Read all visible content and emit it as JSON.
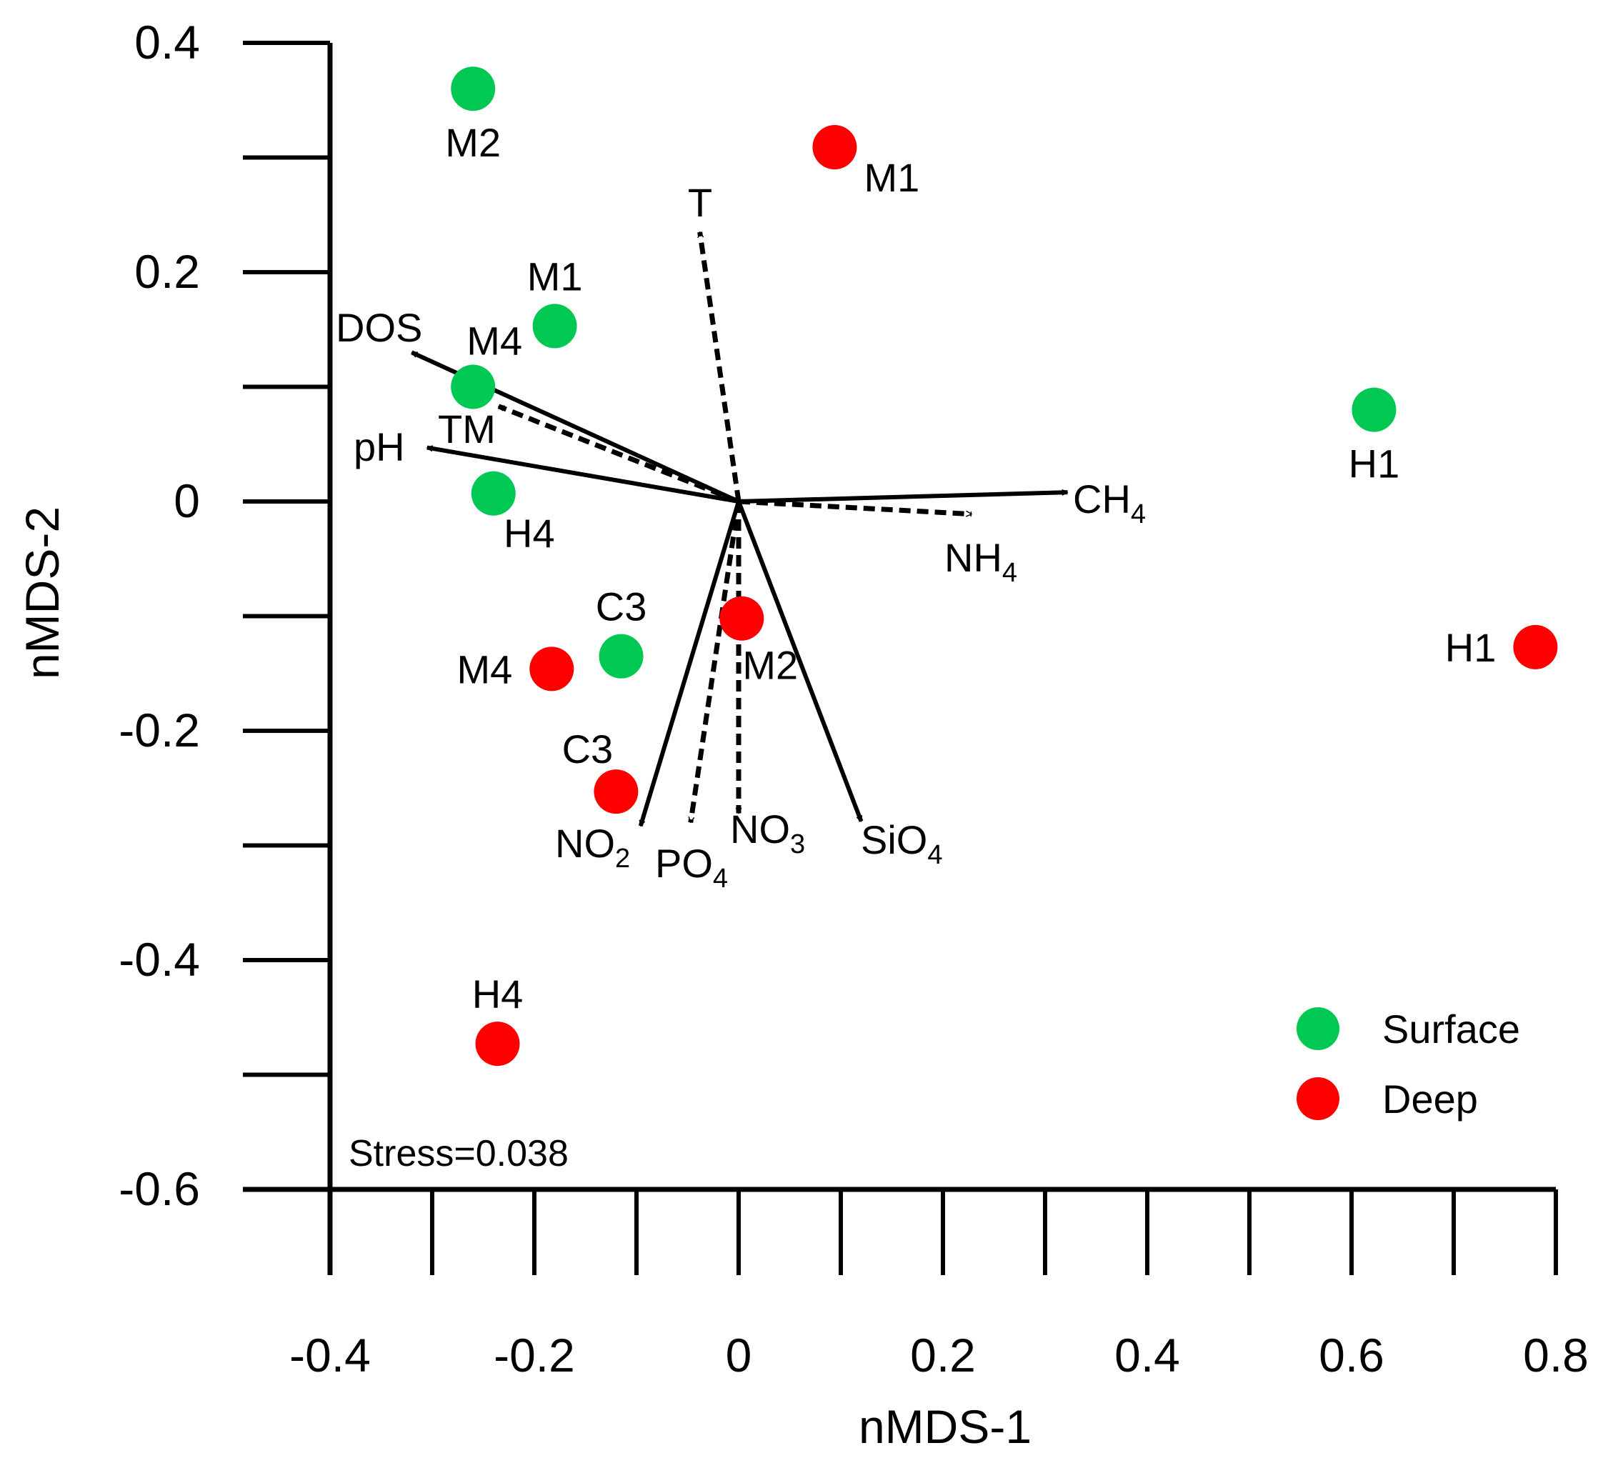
{
  "chart_data": {
    "type": "scatter",
    "title": "",
    "xlabel": "nMDS-1",
    "ylabel": "nMDS-2",
    "xlim": [
      -0.4,
      0.8
    ],
    "ylim": [
      -0.6,
      0.4
    ],
    "x_ticks": [
      -0.4,
      -0.3,
      -0.2,
      -0.1,
      0,
      0.1,
      0.2,
      0.3,
      0.4,
      0.5,
      0.6,
      0.7,
      0.8
    ],
    "x_tick_labels": [
      {
        "value": -0.4,
        "label": "-0.4"
      },
      {
        "value": -0.2,
        "label": "-0.2"
      },
      {
        "value": 0,
        "label": "0"
      },
      {
        "value": 0.2,
        "label": "0.2"
      },
      {
        "value": 0.4,
        "label": "0.4"
      },
      {
        "value": 0.6,
        "label": "0.6"
      },
      {
        "value": 0.8,
        "label": "0.8"
      }
    ],
    "y_ticks": [
      0.4,
      0.3,
      0.2,
      0.1,
      0,
      -0.1,
      -0.2,
      -0.3,
      -0.4,
      -0.5,
      -0.6
    ],
    "y_tick_labels": [
      {
        "value": 0.4,
        "label": "0.4"
      },
      {
        "value": 0.2,
        "label": "0.2"
      },
      {
        "value": 0,
        "label": "0"
      },
      {
        "value": -0.2,
        "label": "-0.2"
      },
      {
        "value": -0.4,
        "label": "-0.4"
      },
      {
        "value": -0.6,
        "label": "-0.6"
      }
    ],
    "series": [
      {
        "name": "Surface",
        "color": "#00c853",
        "points": [
          {
            "label": "M2",
            "x": -0.26,
            "y": 0.36,
            "label_pos": "below"
          },
          {
            "label": "M1",
            "x": -0.18,
            "y": 0.153,
            "label_pos": "above"
          },
          {
            "label": "M4",
            "x": -0.26,
            "y": 0.1,
            "label_pos": "above-right"
          },
          {
            "label": "H4",
            "x": -0.24,
            "y": 0.007,
            "label_pos": "below-right"
          },
          {
            "label": "C3",
            "x": -0.115,
            "y": -0.135,
            "label_pos": "above"
          },
          {
            "label": "H1",
            "x": 0.622,
            "y": 0.08,
            "label_pos": "below"
          }
        ]
      },
      {
        "name": "Deep",
        "color": "#ff0000",
        "points": [
          {
            "label": "M1",
            "x": 0.094,
            "y": 0.309,
            "label_pos": "below-right"
          },
          {
            "label": "M2",
            "x": 0.003,
            "y": -0.102,
            "label_pos": "below-right"
          },
          {
            "label": "M4",
            "x": -0.183,
            "y": -0.146,
            "label_pos": "left"
          },
          {
            "label": "C3",
            "x": -0.12,
            "y": -0.253,
            "label_pos": "above-left"
          },
          {
            "label": "H4",
            "x": -0.236,
            "y": -0.473,
            "label_pos": "above"
          },
          {
            "label": "H1",
            "x": 0.78,
            "y": -0.127,
            "label_pos": "left"
          }
        ]
      }
    ],
    "vectors": [
      {
        "label": "DOS",
        "sub": "",
        "x": -0.32,
        "y": 0.13,
        "style": "solid",
        "label_pos": "above-left"
      },
      {
        "label": "pH",
        "sub": "",
        "x": -0.305,
        "y": 0.047,
        "style": "solid",
        "label_pos": "left"
      },
      {
        "label": "TM",
        "sub": "",
        "x": -0.235,
        "y": 0.083,
        "style": "dashed",
        "label_pos": "below"
      },
      {
        "label": "T",
        "sub": "",
        "x": -0.038,
        "y": 0.235,
        "style": "dashed",
        "label_pos": "above"
      },
      {
        "label": "CH",
        "sub": "4",
        "x": 0.322,
        "y": 0.008,
        "style": "solid",
        "label_pos": "right"
      },
      {
        "label": "NH",
        "sub": "4",
        "x": 0.228,
        "y": -0.011,
        "style": "dashed",
        "label_pos": "below"
      },
      {
        "label": "NO",
        "sub": "2",
        "x": -0.096,
        "y": -0.283,
        "style": "solid",
        "label_pos": "below"
      },
      {
        "label": "PO",
        "sub": "4",
        "x": -0.047,
        "y": -0.28,
        "style": "dashed",
        "label_pos": "below-long"
      },
      {
        "label": "NO",
        "sub": "3",
        "x": 0.0,
        "y": -0.272,
        "style": "dashed",
        "label_pos": "below-right"
      },
      {
        "label": "SiO",
        "sub": "4",
        "x": 0.12,
        "y": -0.279,
        "style": "solid",
        "label_pos": "below-right"
      }
    ],
    "legend": {
      "position": "bottom-right",
      "entries": [
        {
          "name": "Surface",
          "color": "#00c853"
        },
        {
          "name": "Deep",
          "color": "#ff0000"
        }
      ]
    },
    "annotations": [
      {
        "text": "Stress=0.038",
        "position": "bottom-left"
      }
    ],
    "grid": false
  }
}
